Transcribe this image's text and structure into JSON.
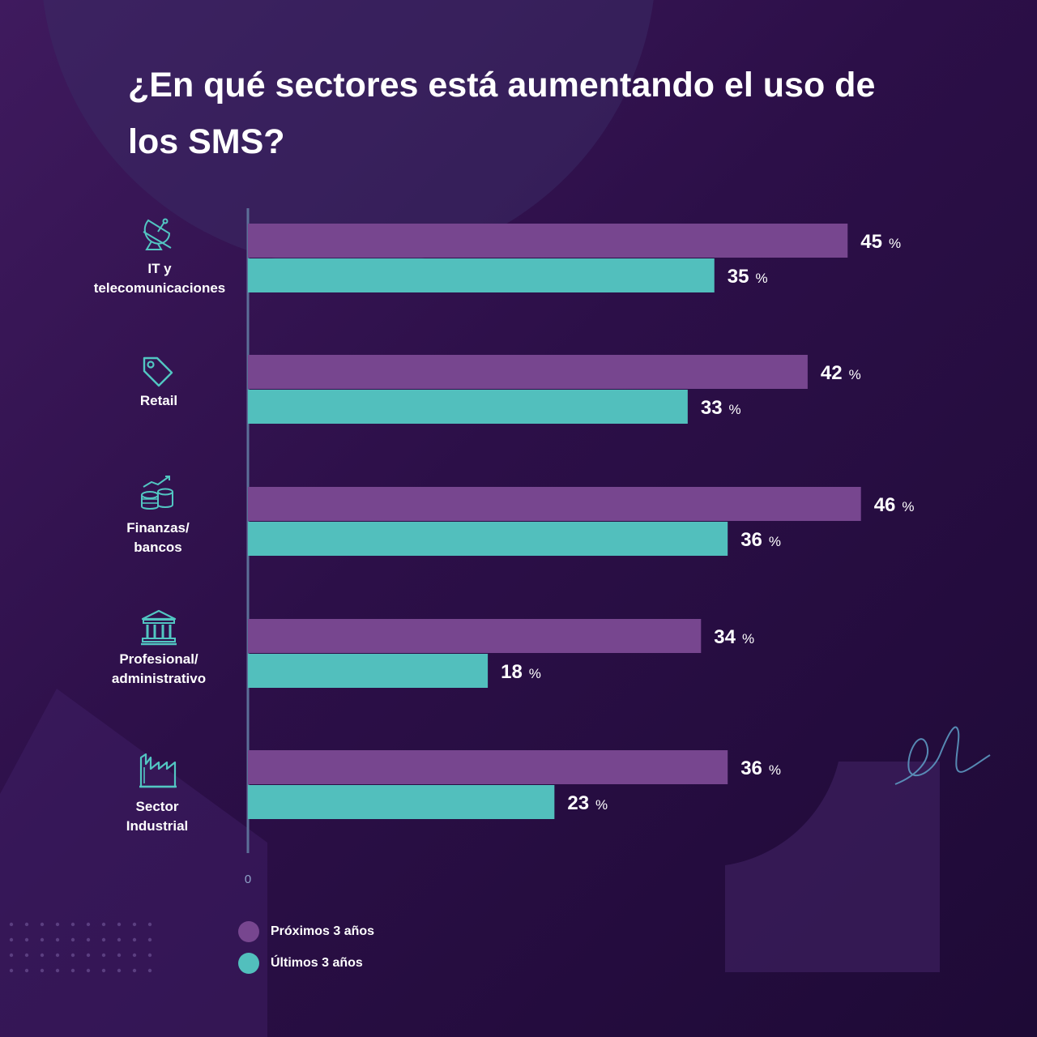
{
  "title": "¿En qué sectores está aumentando el uso de los SMS?",
  "colors": {
    "proximos": "#77468f",
    "ultimos": "#52bfbd",
    "axis": "#5c6f98",
    "background": "#2c0f48"
  },
  "categories": [
    {
      "label_lines": [
        "IT y",
        "telecomunicaciones"
      ],
      "icon": "satellite-dish-icon"
    },
    {
      "label_lines": [
        "Retail"
      ],
      "icon": "price-tag-icon"
    },
    {
      "label_lines": [
        "Finanzas/",
        "bancos"
      ],
      "icon": "coins-growth-icon"
    },
    {
      "label_lines": [
        "Profesional/",
        "administrativo"
      ],
      "icon": "institution-building-icon"
    },
    {
      "label_lines": [
        "Sector",
        "Industrial"
      ],
      "icon": "factory-icon"
    }
  ],
  "legend": [
    {
      "label": "Próximos 3 años",
      "color": "#77468f"
    },
    {
      "label": "Últimos 3 años",
      "color": "#52bfbd"
    }
  ],
  "chart_data": {
    "type": "bar",
    "orientation": "horizontal",
    "categories": [
      "IT y telecomunicaciones",
      "Retail",
      "Finanzas/ bancos",
      "Profesional/ administrativo",
      "Sector Industrial"
    ],
    "series": [
      {
        "name": "Próximos 3 años",
        "values": [
          45,
          42,
          46,
          34,
          36
        ]
      },
      {
        "name": "Últimos 3 años",
        "values": [
          35,
          33,
          36,
          18,
          23
        ]
      }
    ],
    "unit": "%",
    "axis_min_label": "0",
    "xlim": [
      0,
      46
    ],
    "grid": false,
    "legend_position": "bottom-left",
    "title": "¿En qué sectores está aumentando el uso de los SMS?"
  }
}
